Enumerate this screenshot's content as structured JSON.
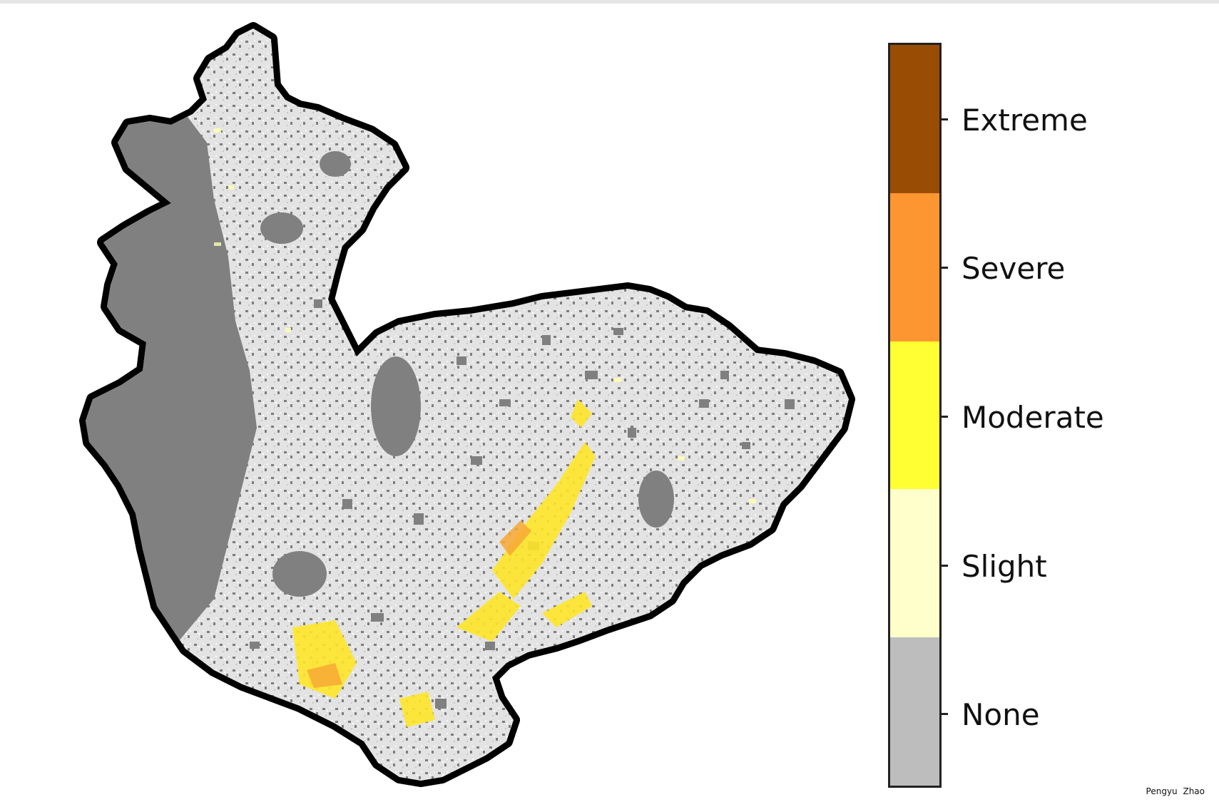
{
  "map": {
    "colors": {
      "none": "#bdbdbd",
      "slight": "#ffffcc",
      "moderate": "#ffff33",
      "severe": "#fd9631",
      "extreme": "#994c04",
      "background_masked": "#808080",
      "boundary": "#000000"
    }
  },
  "legend": {
    "classes": [
      {
        "label": "Extreme",
        "color": "#994c04"
      },
      {
        "label": "Severe",
        "color": "#fd9631"
      },
      {
        "label": "Moderate",
        "color": "#ffff33"
      },
      {
        "label": "Slight",
        "color": "#ffffcc"
      },
      {
        "label": "None",
        "color": "#bdbdbd"
      }
    ]
  },
  "credit": "Pengyu Zhao"
}
